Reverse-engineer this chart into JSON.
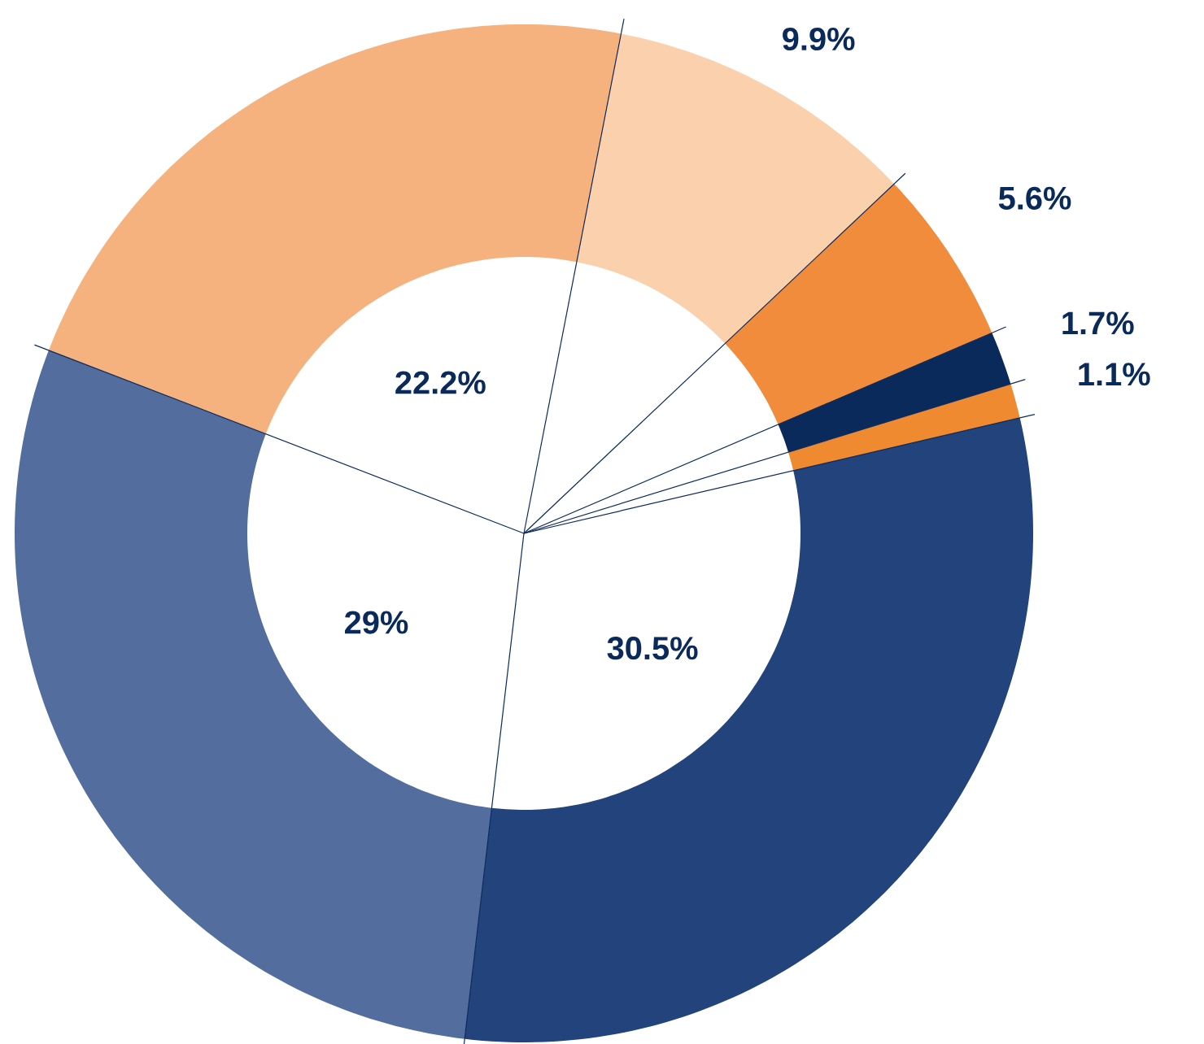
{
  "chart_data": {
    "type": "donut",
    "categories": [
      null,
      null,
      null,
      null,
      null,
      null,
      null
    ],
    "values": [
      9.9,
      5.6,
      1.7,
      1.1,
      30.5,
      29,
      22.2
    ],
    "colors": [
      "#fbd0ac",
      "#f08c3c",
      "#0b2a5c",
      "#ef8a30",
      "#22437c",
      "#526d9e",
      "#f6b27e"
    ],
    "value_labels": [
      "9.9%",
      "5.6%",
      "1.7%",
      "1.1%",
      "30.5%",
      "29%",
      "22.2%"
    ]
  }
}
